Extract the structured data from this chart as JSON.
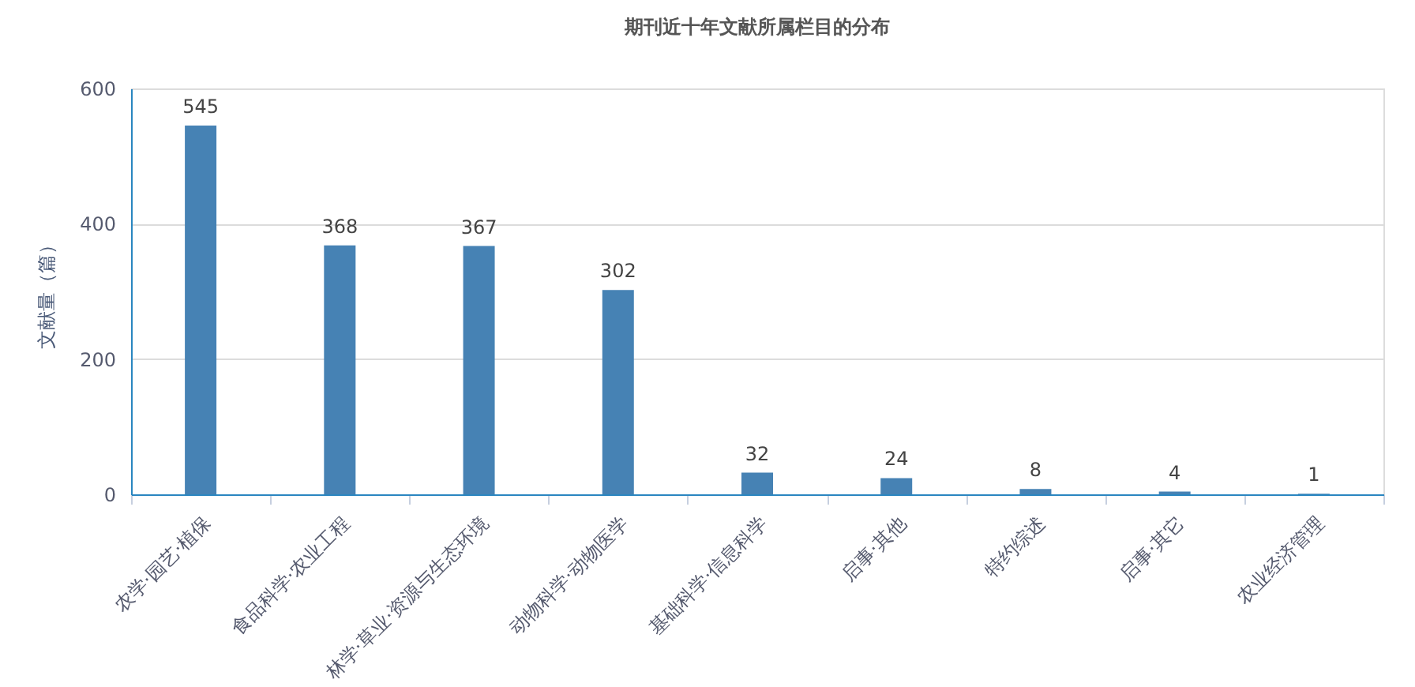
{
  "chart_data": {
    "type": "bar",
    "title": "期刊近十年文献所属栏目的分布",
    "ylabel": "文献量（篇）",
    "categories": [
      "农学·园艺·植保",
      "食品科学·农业工程",
      "林学·草业·资源与生态环境",
      "动物科学·动物医学",
      "基础科学·信息科学",
      "启事·其他",
      "特约综述",
      "启事·其它",
      "农业经济管理"
    ],
    "values": [
      545,
      368,
      367,
      302,
      32,
      24,
      8,
      4,
      1
    ],
    "color": "#4682b4",
    "ylim": [
      0,
      600
    ],
    "yticks": [
      0,
      200,
      400,
      600
    ],
    "grid": "y",
    "data_labels": true
  }
}
